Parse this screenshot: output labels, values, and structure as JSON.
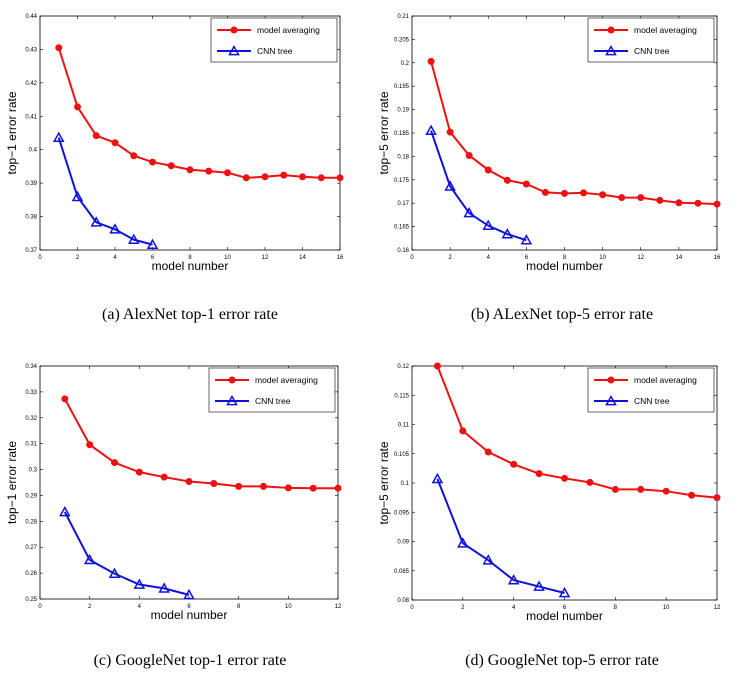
{
  "captions": [
    "(a)  AlexNet top-1 error rate",
    "(b)  ALexNet top-5 error rate",
    "(c)  GoogleNet top-1 error rate",
    "(d)  GoogleNet top-5 error rate"
  ],
  "colors": {
    "model_averaging": "#ee1111",
    "cnn_tree": "#1111dd"
  },
  "chart_data": [
    {
      "type": "line",
      "xlabel": "model number",
      "ylabel": "top−1 error rate",
      "xlim": [
        0,
        16
      ],
      "ylim": [
        0.37,
        0.44
      ],
      "xticks": [
        0,
        2,
        4,
        6,
        8,
        10,
        12,
        14,
        16
      ],
      "xtick_labels": [
        "0",
        "2",
        "4",
        "6",
        "8",
        "10",
        "12",
        "14",
        "16"
      ],
      "yticks": [
        0.37,
        0.38,
        0.39,
        0.4,
        0.41,
        0.42,
        0.43,
        0.44
      ],
      "ytick_labels": [
        "0.37",
        "0.38",
        "0.39",
        "0.4",
        "0.41",
        "0.42",
        "0.43",
        "0.44"
      ],
      "legend": "top-right",
      "series": [
        {
          "name": "model averaging",
          "marker": "circle",
          "x": [
            1,
            2,
            3,
            4,
            5,
            6,
            7,
            8,
            9,
            10,
            11,
            12,
            13,
            14,
            15,
            16
          ],
          "values": [
            0.4305,
            0.4128,
            0.4042,
            0.4021,
            0.3982,
            0.3963,
            0.3952,
            0.394,
            0.3936,
            0.3931,
            0.3916,
            0.3919,
            0.3924,
            0.3919,
            0.3916,
            0.3916
          ]
        },
        {
          "name": "CNN tree",
          "marker": "triangle",
          "x": [
            1,
            2,
            3,
            4,
            5,
            6
          ],
          "values": [
            0.4036,
            0.3859,
            0.3783,
            0.3762,
            0.3731,
            0.3716
          ]
        }
      ]
    },
    {
      "type": "line",
      "xlabel": "model number",
      "ylabel": "top−5 error rate",
      "xlim": [
        0,
        16
      ],
      "ylim": [
        0.16,
        0.21
      ],
      "xticks": [
        0,
        2,
        4,
        6,
        8,
        10,
        12,
        14,
        16
      ],
      "xtick_labels": [
        "0",
        "2",
        "4",
        "6",
        "8",
        "10",
        "12",
        "14",
        "16"
      ],
      "yticks": [
        0.16,
        0.165,
        0.17,
        0.175,
        0.18,
        0.185,
        0.19,
        0.195,
        0.2,
        0.205,
        0.21
      ],
      "ytick_labels": [
        "0.16",
        "0.165",
        "0.17",
        "0.175",
        "0.18",
        "0.185",
        "0.19",
        "0.195",
        "0.2",
        "0.205",
        "0.21"
      ],
      "legend": "top-right",
      "series": [
        {
          "name": "model averaging",
          "marker": "circle",
          "x": [
            1,
            2,
            3,
            4,
            5,
            6,
            7,
            8,
            9,
            10,
            11,
            12,
            13,
            14,
            15,
            16
          ],
          "values": [
            0.2003,
            0.1852,
            0.1802,
            0.1771,
            0.1749,
            0.1741,
            0.1723,
            0.1721,
            0.1722,
            0.1718,
            0.1712,
            0.1712,
            0.1706,
            0.1701,
            0.17,
            0.1698
          ]
        },
        {
          "name": "CNN tree",
          "marker": "triangle",
          "x": [
            1,
            2,
            3,
            4,
            5,
            6
          ],
          "values": [
            0.1855,
            0.1736,
            0.1679,
            0.1652,
            0.1634,
            0.1621
          ]
        }
      ]
    },
    {
      "type": "line",
      "xlabel": "model number",
      "ylabel": "top−1 error rate",
      "xlim": [
        0,
        12
      ],
      "ylim": [
        0.25,
        0.34
      ],
      "xticks": [
        0,
        2,
        4,
        6,
        8,
        10,
        12
      ],
      "xtick_labels": [
        "0",
        "2",
        "4",
        "6",
        "8",
        "10",
        "12"
      ],
      "yticks": [
        0.25,
        0.26,
        0.27,
        0.28,
        0.29,
        0.3,
        0.31,
        0.32,
        0.33,
        0.34
      ],
      "ytick_labels": [
        "0.25",
        "0.26",
        "0.27",
        "0.28",
        "0.29",
        "0.3",
        "0.31",
        "0.32",
        "0.33",
        "0.34"
      ],
      "legend": "top-right",
      "series": [
        {
          "name": "model averaging",
          "marker": "circle",
          "x": [
            1,
            2,
            3,
            4,
            5,
            6,
            7,
            8,
            9,
            10,
            11,
            12
          ],
          "values": [
            0.3273,
            0.3096,
            0.3027,
            0.299,
            0.2971,
            0.2954,
            0.2946,
            0.2935,
            0.2935,
            0.2929,
            0.2928,
            0.2928
          ]
        },
        {
          "name": "CNN tree",
          "marker": "triangle",
          "x": [
            1,
            2,
            3,
            4,
            5,
            6
          ],
          "values": [
            0.2836,
            0.2651,
            0.2598,
            0.2556,
            0.2541,
            0.2516
          ]
        }
      ]
    },
    {
      "type": "line",
      "xlabel": "model number",
      "ylabel": "top−5 error rate",
      "xlim": [
        0,
        12
      ],
      "ylim": [
        0.08,
        0.12
      ],
      "xticks": [
        0,
        2,
        4,
        6,
        8,
        10,
        12
      ],
      "xtick_labels": [
        "0",
        "2",
        "4",
        "6",
        "8",
        "10",
        "12"
      ],
      "yticks": [
        0.08,
        0.085,
        0.09,
        0.095,
        0.1,
        0.105,
        0.11,
        0.115,
        0.12
      ],
      "ytick_labels": [
        "0.08",
        "0.085",
        "0.09",
        "0.095",
        "0.1",
        "0.105",
        "0.11",
        "0.115",
        "0.12"
      ],
      "legend": "top-right",
      "series": [
        {
          "name": "model averaging",
          "marker": "circle",
          "x": [
            1,
            2,
            3,
            4,
            5,
            6,
            7,
            8,
            9,
            10,
            11,
            12
          ],
          "values": [
            0.12,
            0.1089,
            0.1053,
            0.1032,
            0.1016,
            0.1008,
            0.1001,
            0.0989,
            0.0989,
            0.0986,
            0.0979,
            0.0975
          ]
        },
        {
          "name": "CNN tree",
          "marker": "triangle",
          "x": [
            1,
            2,
            3,
            4,
            5,
            6
          ],
          "values": [
            0.1007,
            0.0897,
            0.0868,
            0.0834,
            0.0823,
            0.0812
          ]
        }
      ]
    }
  ]
}
